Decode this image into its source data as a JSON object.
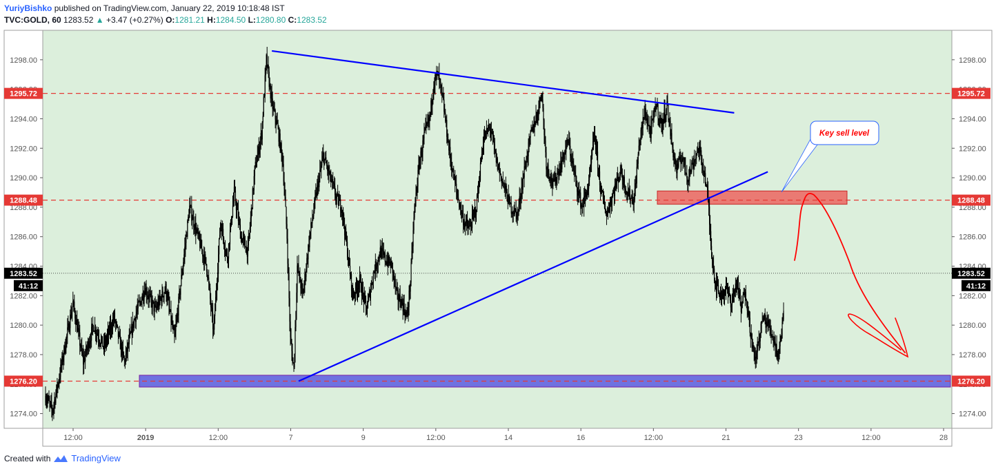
{
  "header": {
    "author": "YuriyBishko",
    "published_text": "published on TradingView.com, January 22, 2019 10:18:48 IST",
    "symbol": "TVC:GOLD, 60",
    "last": "1283.52",
    "change_arrow": "▲",
    "change": "+3.47 (+0.27%)",
    "o_label": "O:",
    "o_value": "1281.21",
    "h_label": "H:",
    "h_value": "1284.50",
    "l_label": "L:",
    "l_value": "1280.80",
    "c_label": "C:",
    "c_value": "1283.52"
  },
  "footer": {
    "created_with": "Created with",
    "brand": "TradingView",
    "brand_icon": "tradingview-logo-icon"
  },
  "colors": {
    "plot_bg": "#dcefdc",
    "candle": "#000000",
    "trendline": "#0000ff",
    "level_line": "#e53935",
    "price_label_bg": "#e53935",
    "last_price_bg": "#000000",
    "sell_zone": "#ef5350",
    "support_zone": "#5c5ce0",
    "annotation": "#ff0000",
    "callout_text": "#ff0000",
    "callout_border": "#2962ff"
  },
  "chart_data": {
    "type": "candlestick",
    "y_range": [
      1273.0,
      1300.0
    ],
    "y_ticks": [
      "1274.00",
      "1276.00",
      "1278.00",
      "1280.00",
      "1282.00",
      "1284.00",
      "1286.00",
      "1288.00",
      "1290.00",
      "1292.00",
      "1294.00",
      "1296.00",
      "1298.00"
    ],
    "x_ticks": [
      "12:00",
      "2019",
      "12:00",
      "7",
      "9",
      "12:00",
      "14",
      "16",
      "12:00",
      "21",
      "23",
      "12:00",
      "28"
    ],
    "grid": false,
    "price_levels": [
      {
        "label": "1295.72",
        "value": 1295.72,
        "style": "dashed-red"
      },
      {
        "label": "1288.48",
        "value": 1288.48,
        "style": "dashed-red"
      },
      {
        "label": "1276.20",
        "value": 1276.2,
        "style": "dashed-red"
      }
    ],
    "last_price": {
      "label": "1283.52",
      "value": 1283.52,
      "countdown": "41:12"
    },
    "path_points": [
      [
        0,
        1275.2
      ],
      [
        10,
        1274.2
      ],
      [
        20,
        1276.5
      ],
      [
        40,
        1281.5
      ],
      [
        55,
        1277.5
      ],
      [
        70,
        1280.0
      ],
      [
        85,
        1278.5
      ],
      [
        100,
        1280.5
      ],
      [
        115,
        1277.5
      ],
      [
        130,
        1280.5
      ],
      [
        145,
        1282.5
      ],
      [
        160,
        1281.0
      ],
      [
        175,
        1282.5
      ],
      [
        188,
        1279.0
      ],
      [
        200,
        1284.0
      ],
      [
        210,
        1288.0
      ],
      [
        222,
        1286.0
      ],
      [
        235,
        1284.0
      ],
      [
        245,
        1279.5
      ],
      [
        255,
        1287.0
      ],
      [
        265,
        1284.5
      ],
      [
        275,
        1289.0
      ],
      [
        285,
        1286.0
      ],
      [
        295,
        1285.0
      ],
      [
        305,
        1290.5
      ],
      [
        315,
        1293.0
      ],
      [
        322,
        1298.0
      ],
      [
        330,
        1295.0
      ],
      [
        338,
        1293.5
      ],
      [
        346,
        1291.0
      ],
      [
        352,
        1286.0
      ],
      [
        357,
        1279.0
      ],
      [
        362,
        1277.0
      ],
      [
        367,
        1284.0
      ],
      [
        375,
        1282.0
      ],
      [
        385,
        1286.0
      ],
      [
        395,
        1289.0
      ],
      [
        405,
        1291.5
      ],
      [
        415,
        1290.0
      ],
      [
        425,
        1288.5
      ],
      [
        432,
        1288.0
      ],
      [
        440,
        1285.0
      ],
      [
        448,
        1282.0
      ],
      [
        458,
        1283.0
      ],
      [
        468,
        1281.0
      ],
      [
        478,
        1283.5
      ],
      [
        488,
        1285.0
      ],
      [
        495,
        1284.5
      ],
      [
        505,
        1284.0
      ],
      [
        512,
        1282.0
      ],
      [
        520,
        1281.5
      ],
      [
        527,
        1280.5
      ],
      [
        532,
        1283.0
      ],
      [
        538,
        1288.0
      ],
      [
        545,
        1291.0
      ],
      [
        553,
        1293.0
      ],
      [
        560,
        1294.0
      ],
      [
        566,
        1296.5
      ],
      [
        572,
        1297.0
      ],
      [
        580,
        1295.0
      ],
      [
        588,
        1292.0
      ],
      [
        595,
        1290.0
      ],
      [
        602,
        1288.5
      ],
      [
        610,
        1287.0
      ],
      [
        618,
        1286.5
      ],
      [
        628,
        1288.0
      ],
      [
        638,
        1292.5
      ],
      [
        648,
        1293.5
      ],
      [
        658,
        1291.0
      ],
      [
        668,
        1289.5
      ],
      [
        678,
        1288.0
      ],
      [
        688,
        1287.5
      ],
      [
        698,
        1290.5
      ],
      [
        708,
        1293.0
      ],
      [
        718,
        1294.5
      ],
      [
        723,
        1296.0
      ],
      [
        730,
        1291.0
      ],
      [
        740,
        1289.5
      ],
      [
        752,
        1291.0
      ],
      [
        762,
        1292.5
      ],
      [
        772,
        1290.0
      ],
      [
        782,
        1288.0
      ],
      [
        792,
        1289.5
      ],
      [
        800,
        1293.0
      ],
      [
        810,
        1289.0
      ],
      [
        818,
        1287.5
      ],
      [
        828,
        1289.0
      ],
      [
        838,
        1290.5
      ],
      [
        848,
        1289.0
      ],
      [
        858,
        1288.5
      ],
      [
        866,
        1292.5
      ],
      [
        874,
        1294.5
      ],
      [
        882,
        1293.0
      ],
      [
        890,
        1295.0
      ],
      [
        898,
        1293.5
      ],
      [
        906,
        1295.0
      ],
      [
        914,
        1292.0
      ],
      [
        920,
        1290.5
      ],
      [
        928,
        1291.5
      ],
      [
        936,
        1290.0
      ],
      [
        944,
        1291.0
      ],
      [
        952,
        1292.0
      ],
      [
        960,
        1290.5
      ],
      [
        966,
        1288.5
      ],
      [
        970,
        1285.5
      ],
      [
        976,
        1283.0
      ],
      [
        984,
        1282.0
      ],
      [
        992,
        1282.5
      ],
      [
        1000,
        1281.5
      ],
      [
        1008,
        1283.0
      ],
      [
        1014,
        1281.0
      ],
      [
        1020,
        1282.5
      ],
      [
        1028,
        1279.5
      ],
      [
        1034,
        1277.5
      ],
      [
        1040,
        1279.0
      ],
      [
        1046,
        1280.5
      ],
      [
        1054,
        1280.0
      ],
      [
        1062,
        1279.0
      ],
      [
        1068,
        1278.0
      ],
      [
        1073,
        1279.5
      ],
      [
        1076,
        1281.0
      ],
      [
        1078,
        1283.52
      ]
    ],
    "trendlines": [
      {
        "from": [
          330,
          1298.6
        ],
        "to": [
          1004,
          1294.4
        ],
        "name": "descending resistance"
      },
      {
        "from": [
          369,
          1276.2
        ],
        "to": [
          1053,
          1290.4
        ],
        "name": "ascending support"
      }
    ],
    "zones": [
      {
        "name": "Key sell level",
        "y_range": [
          1288.2,
          1289.1
        ]
      },
      {
        "name": "support zone",
        "y_range": [
          1275.8,
          1276.6
        ]
      }
    ],
    "annotations": [
      {
        "type": "callout",
        "text": "Key sell level"
      }
    ]
  }
}
